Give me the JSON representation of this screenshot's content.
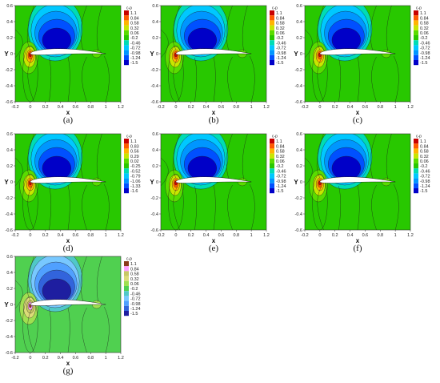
{
  "figure": {
    "panels": [
      {
        "caption": "(a)",
        "levels": [
          "1.1",
          "0.84",
          "0.58",
          "0.32",
          "0.06",
          "-0.2",
          "-0.46",
          "-0.72",
          "-0.98",
          "-1.24",
          "-1.5"
        ],
        "colorbar_title": "c-p",
        "variant": "normal"
      },
      {
        "caption": "(b)",
        "levels": [
          "1.1",
          "0.84",
          "0.58",
          "0.32",
          "0.06",
          "-0.2",
          "-0.46",
          "-0.72",
          "-0.98",
          "-1.24",
          "-1.5"
        ],
        "colorbar_title": "c-p",
        "variant": "normal"
      },
      {
        "caption": "(c)",
        "levels": [
          "1.1",
          "0.84",
          "0.58",
          "0.32",
          "0.06",
          "-0.2",
          "-0.46",
          "-0.72",
          "-0.98",
          "-1.24",
          "-1.5"
        ],
        "colorbar_title": "c-p",
        "variant": "normal"
      },
      {
        "caption": "(d)",
        "levels": [
          "1.1",
          "0.83",
          "0.56",
          "0.29",
          "0.02",
          "-0.25",
          "-0.52",
          "-0.79",
          "-1.06",
          "-1.33",
          "-1.6"
        ],
        "colorbar_title": "c-p",
        "variant": "normal"
      },
      {
        "caption": "(e)",
        "levels": [
          "1.1",
          "0.84",
          "0.58",
          "0.32",
          "0.06",
          "-0.2",
          "-0.46",
          "-0.72",
          "-0.98",
          "-1.24",
          "-1.5"
        ],
        "colorbar_title": "c-p",
        "variant": "normal"
      },
      {
        "caption": "(f)",
        "levels": [
          "1.1",
          "0.84",
          "0.58",
          "0.32",
          "0.06",
          "-0.2",
          "-0.46",
          "-0.72",
          "-0.98",
          "-1.24",
          "-1.5"
        ],
        "colorbar_title": "c-p",
        "variant": "normal"
      },
      {
        "caption": "(g)",
        "levels": [
          "1.1",
          "0.84",
          "0.58",
          "0.32",
          "0.06",
          "-0.2",
          "-0.46",
          "-0.72",
          "-0.98",
          "-1.24",
          "-1.5"
        ],
        "colorbar_title": "c-p",
        "variant": "muted"
      }
    ],
    "x_ticks": [
      "-0.2",
      "0",
      "0.2",
      "0.4",
      "0.6",
      "0.8",
      "1",
      "1.2"
    ],
    "y_ticks": [
      "0.6",
      "0.4",
      "0.2",
      "0",
      "-0.2",
      "-0.4",
      "-0.6"
    ],
    "x_label": "x",
    "y_label": "Y",
    "colors": {
      "normal": [
        "#c80000",
        "#ff5a00",
        "#ffb400",
        "#c8e600",
        "#5adc00",
        "#28c800",
        "#00dcb4",
        "#00c8ff",
        "#0096ff",
        "#0050ff",
        "#0000c8"
      ],
      "muted": [
        "#8b3a1a",
        "#ffa0ff",
        "#c8c864",
        "#dcdc78",
        "#a0e050",
        "#50d050",
        "#50c8c8",
        "#78c8ff",
        "#50a0ff",
        "#3264dc",
        "#1e1ea0"
      ]
    }
  }
}
